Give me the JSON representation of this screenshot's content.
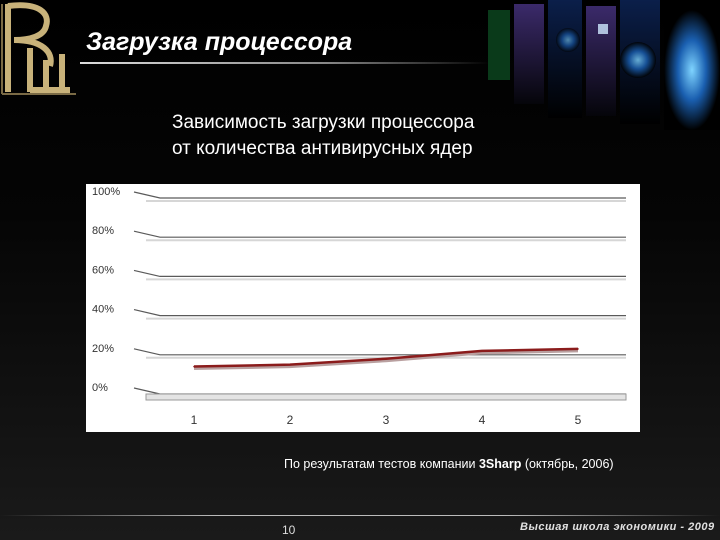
{
  "slide": {
    "title": "Загрузка процессора",
    "subtitle_line1": "Зависимость загрузки процессора",
    "subtitle_line2": "от количества антивирусных ядер",
    "caption_before": "По результатам тестов компании ",
    "caption_bold": "3Sharp",
    "caption_after": " (октябрь, 2006)",
    "page_number": "10",
    "footer": "Высшая школа экономики - 2009"
  },
  "logo": {
    "icon": "hse-logo-icon",
    "color": "#c8b27a"
  },
  "chart_data": {
    "type": "line",
    "categories": [
      "1",
      "2",
      "3",
      "4",
      "5"
    ],
    "y_ticks": [
      "0%",
      "20%",
      "40%",
      "60%",
      "80%",
      "100%"
    ],
    "series": [
      {
        "values": [
          14,
          15,
          18,
          22,
          23
        ],
        "color": "#8b1c1c"
      }
    ],
    "ylim": [
      0,
      100
    ],
    "grid": true,
    "legend": "none",
    "xlabel": "",
    "ylabel": ""
  }
}
